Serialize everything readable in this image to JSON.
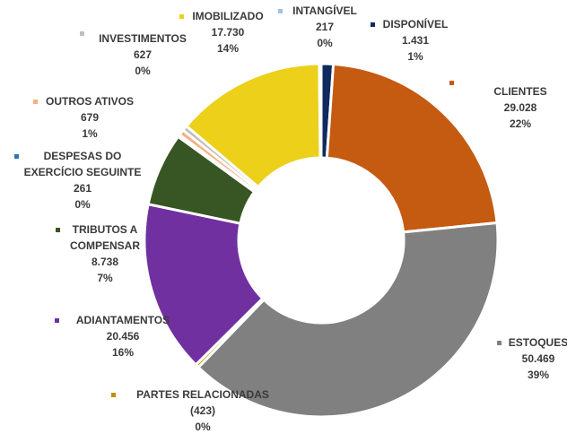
{
  "chart_data": {
    "type": "donut",
    "categories": [
      "DISPONÍVEL",
      "CLIENTES",
      "ESTOQUES",
      "PARTES RELACIONADAS",
      "ADIANTAMENTOS",
      "TRIBUTOS A\nCOMPENSAR",
      "DESPESAS DO\nEXERCÍCIO SEGUINTE",
      "OUTROS ATIVOS",
      "INVESTIMENTOS",
      "IMOBILIZADO",
      "INTANGÍVEL"
    ],
    "values": [
      1431,
      29028,
      50469,
      -423,
      20456,
      8738,
      261,
      679,
      627,
      17730,
      217
    ],
    "value_labels": [
      "1.431",
      "29.028",
      "50.469",
      "(423)",
      "20.456",
      "8.738",
      "261",
      "679",
      "627",
      "17.730",
      "217"
    ],
    "percent_labels": [
      "1%",
      "22%",
      "39%",
      "0%",
      "16%",
      "7%",
      "0%",
      "1%",
      "0%",
      "14%",
      "0%"
    ],
    "colors": [
      "#0e2a5e",
      "#c55a11",
      "#808080",
      "#bf9000",
      "#7030a0",
      "#375623",
      "#2e75b6",
      "#f4b183",
      "#bfbfbf",
      "#ecd01a",
      "#9dc3e6"
    ]
  }
}
